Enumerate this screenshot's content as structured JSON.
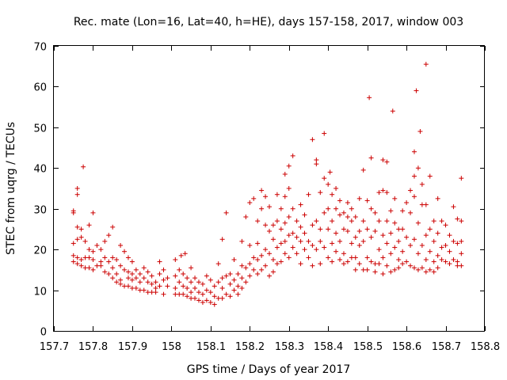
{
  "chart_data": {
    "type": "scatter",
    "title": "Rec. mate (Lon=16, Lat=40, h=HE), days 157-158, 2017, window 003",
    "xlabel": "GPS time / Days of year 2017",
    "ylabel": "STEC from uqrg / TECUs",
    "xlim": [
      157.7,
      158.8
    ],
    "ylim": [
      0,
      70
    ],
    "grid": false,
    "legend": "none",
    "marker": "plus",
    "point_color": "#cc0000",
    "x_ticks": [
      "157.7",
      "157.8",
      "157.9",
      "158",
      "158.1",
      "158.2",
      "158.3",
      "158.4",
      "158.5",
      "158.6",
      "158.7",
      "158.8"
    ],
    "x_tick_values": [
      157.7,
      157.8,
      157.9,
      158.0,
      158.1,
      158.2,
      158.3,
      158.4,
      158.5,
      158.6,
      158.7,
      158.8
    ],
    "y_ticks": [
      "0",
      "10",
      "20",
      "30",
      "40",
      "50",
      "60",
      "70"
    ],
    "y_tick_values": [
      0,
      10,
      20,
      30,
      40,
      50,
      60,
      70
    ],
    "points": [
      [
        157.75,
        29.5
      ],
      [
        157.75,
        29.0
      ],
      [
        157.75,
        21.5
      ],
      [
        157.75,
        18.5
      ],
      [
        157.75,
        17.0
      ],
      [
        157.76,
        35.0
      ],
      [
        157.76,
        33.5
      ],
      [
        157.76,
        25.5
      ],
      [
        157.76,
        22.5
      ],
      [
        157.76,
        18.0
      ],
      [
        157.76,
        16.5
      ],
      [
        157.77,
        25.0
      ],
      [
        157.77,
        23.0
      ],
      [
        157.77,
        17.5
      ],
      [
        157.77,
        16.0
      ],
      [
        157.775,
        40.3
      ],
      [
        157.78,
        22.0
      ],
      [
        157.78,
        18.0
      ],
      [
        157.78,
        15.5
      ],
      [
        157.79,
        26.0
      ],
      [
        157.79,
        20.0
      ],
      [
        157.79,
        18.0
      ],
      [
        157.79,
        15.5
      ],
      [
        157.8,
        29.0
      ],
      [
        157.8,
        19.5
      ],
      [
        157.8,
        17.5
      ],
      [
        157.8,
        15.0
      ],
      [
        157.81,
        21.0
      ],
      [
        157.81,
        16.0
      ],
      [
        157.82,
        20.0
      ],
      [
        157.82,
        17.0
      ],
      [
        157.82,
        16.0
      ],
      [
        157.83,
        22.0
      ],
      [
        157.83,
        18.0
      ],
      [
        157.83,
        14.5
      ],
      [
        157.84,
        23.5
      ],
      [
        157.84,
        17.0
      ],
      [
        157.84,
        14.0
      ],
      [
        157.85,
        25.5
      ],
      [
        157.85,
        18.0
      ],
      [
        157.85,
        15.5
      ],
      [
        157.85,
        13.0
      ],
      [
        157.86,
        17.5
      ],
      [
        157.86,
        14.0
      ],
      [
        157.86,
        12.0
      ],
      [
        157.87,
        21.0
      ],
      [
        157.87,
        16.0
      ],
      [
        157.87,
        12.5
      ],
      [
        157.87,
        11.5
      ],
      [
        157.88,
        19.5
      ],
      [
        157.88,
        15.0
      ],
      [
        157.88,
        11.0
      ],
      [
        157.89,
        18.0
      ],
      [
        157.89,
        14.5
      ],
      [
        157.89,
        13.0
      ],
      [
        157.89,
        11.0
      ],
      [
        157.9,
        17.0
      ],
      [
        157.9,
        14.0
      ],
      [
        157.9,
        12.5
      ],
      [
        157.9,
        10.5
      ],
      [
        157.91,
        15.0
      ],
      [
        157.91,
        13.0
      ],
      [
        157.91,
        10.5
      ],
      [
        157.92,
        14.0
      ],
      [
        157.92,
        12.0
      ],
      [
        157.92,
        10.0
      ],
      [
        157.93,
        15.5
      ],
      [
        157.93,
        13.0
      ],
      [
        157.93,
        10.0
      ],
      [
        157.94,
        14.5
      ],
      [
        157.94,
        12.0
      ],
      [
        157.94,
        9.5
      ],
      [
        157.95,
        13.5
      ],
      [
        157.95,
        11.5
      ],
      [
        157.95,
        9.5
      ],
      [
        157.96,
        12.0
      ],
      [
        157.96,
        10.5
      ],
      [
        157.96,
        9.5
      ],
      [
        157.97,
        17.0
      ],
      [
        157.97,
        14.0
      ],
      [
        157.97,
        11.0
      ],
      [
        157.98,
        15.0
      ],
      [
        157.98,
        12.5
      ],
      [
        157.98,
        9.0
      ],
      [
        157.99,
        13.0
      ],
      [
        157.99,
        11.0
      ],
      [
        158.01,
        17.5
      ],
      [
        158.01,
        13.5
      ],
      [
        158.01,
        10.5
      ],
      [
        158.01,
        9.0
      ],
      [
        158.02,
        15.0
      ],
      [
        158.02,
        12.0
      ],
      [
        158.02,
        9.0
      ],
      [
        158.025,
        18.5
      ],
      [
        158.03,
        14.0
      ],
      [
        158.03,
        11.0
      ],
      [
        158.03,
        9.0
      ],
      [
        158.035,
        19.0
      ],
      [
        158.04,
        13.0
      ],
      [
        158.04,
        10.5
      ],
      [
        158.04,
        8.5
      ],
      [
        158.05,
        15.5
      ],
      [
        158.05,
        12.0
      ],
      [
        158.05,
        9.5
      ],
      [
        158.05,
        8.0
      ],
      [
        158.06,
        13.0
      ],
      [
        158.06,
        10.5
      ],
      [
        158.06,
        8.0
      ],
      [
        158.07,
        12.0
      ],
      [
        158.07,
        9.5
      ],
      [
        158.07,
        7.5
      ],
      [
        158.08,
        11.5
      ],
      [
        158.08,
        9.0
      ],
      [
        158.08,
        7.0
      ],
      [
        158.09,
        13.5
      ],
      [
        158.09,
        10.0
      ],
      [
        158.09,
        7.5
      ],
      [
        158.1,
        12.5
      ],
      [
        158.1,
        9.5
      ],
      [
        158.1,
        7.0
      ],
      [
        158.11,
        11.0
      ],
      [
        158.11,
        8.5
      ],
      [
        158.11,
        6.5
      ],
      [
        158.12,
        16.5
      ],
      [
        158.12,
        12.0
      ],
      [
        158.12,
        8.0
      ],
      [
        158.13,
        22.5
      ],
      [
        158.13,
        13.0
      ],
      [
        158.13,
        10.5
      ],
      [
        158.13,
        8.0
      ],
      [
        158.14,
        29.0
      ],
      [
        158.14,
        13.5
      ],
      [
        158.14,
        9.0
      ],
      [
        158.15,
        14.0
      ],
      [
        158.15,
        11.5
      ],
      [
        158.15,
        8.5
      ],
      [
        158.16,
        17.5
      ],
      [
        158.16,
        12.5
      ],
      [
        158.16,
        10.0
      ],
      [
        158.17,
        14.0
      ],
      [
        158.17,
        11.0
      ],
      [
        158.17,
        9.0
      ],
      [
        158.18,
        22.0
      ],
      [
        158.18,
        16.0
      ],
      [
        158.18,
        13.0
      ],
      [
        158.18,
        10.5
      ],
      [
        158.19,
        28.0
      ],
      [
        158.19,
        15.5
      ],
      [
        158.19,
        12.0
      ],
      [
        158.2,
        31.5
      ],
      [
        158.2,
        21.0
      ],
      [
        158.2,
        16.5
      ],
      [
        158.2,
        13.5
      ],
      [
        158.21,
        32.5
      ],
      [
        158.21,
        18.0
      ],
      [
        158.21,
        15.0
      ],
      [
        158.22,
        27.0
      ],
      [
        158.22,
        21.5
      ],
      [
        158.22,
        17.5
      ],
      [
        158.22,
        14.0
      ],
      [
        158.23,
        34.5
      ],
      [
        158.23,
        30.0
      ],
      [
        158.23,
        18.5
      ],
      [
        158.23,
        15.0
      ],
      [
        158.24,
        33.0
      ],
      [
        158.24,
        26.0
      ],
      [
        158.24,
        20.0
      ],
      [
        158.24,
        16.0
      ],
      [
        158.25,
        30.5
      ],
      [
        158.25,
        24.5
      ],
      [
        158.25,
        19.0
      ],
      [
        158.25,
        13.5
      ],
      [
        158.26,
        26.0
      ],
      [
        158.26,
        22.5
      ],
      [
        158.26,
        17.5
      ],
      [
        158.26,
        14.5
      ],
      [
        158.27,
        33.5
      ],
      [
        158.27,
        27.0
      ],
      [
        158.27,
        20.5
      ],
      [
        158.27,
        16.5
      ],
      [
        158.28,
        30.0
      ],
      [
        158.28,
        25.0
      ],
      [
        158.28,
        21.5
      ],
      [
        158.28,
        17.0
      ],
      [
        158.29,
        38.5
      ],
      [
        158.29,
        33.0
      ],
      [
        158.29,
        26.5
      ],
      [
        158.29,
        22.0
      ],
      [
        158.29,
        19.0
      ],
      [
        158.3,
        40.5
      ],
      [
        158.3,
        35.0
      ],
      [
        158.3,
        28.0
      ],
      [
        158.3,
        23.5
      ],
      [
        158.3,
        18.0
      ],
      [
        158.31,
        43.0
      ],
      [
        158.31,
        30.0
      ],
      [
        158.31,
        24.0
      ],
      [
        158.31,
        20.5
      ],
      [
        158.32,
        27.0
      ],
      [
        158.32,
        23.0
      ],
      [
        158.32,
        19.0
      ],
      [
        158.33,
        31.0
      ],
      [
        158.33,
        25.5
      ],
      [
        158.33,
        22.0
      ],
      [
        158.33,
        16.5
      ],
      [
        158.34,
        28.5
      ],
      [
        158.34,
        24.0
      ],
      [
        158.34,
        20.0
      ],
      [
        158.35,
        33.5
      ],
      [
        158.35,
        22.0
      ],
      [
        158.35,
        18.0
      ],
      [
        158.36,
        47.0
      ],
      [
        158.36,
        26.0
      ],
      [
        158.36,
        21.0
      ],
      [
        158.36,
        16.0
      ],
      [
        158.37,
        42.0
      ],
      [
        158.37,
        41.0
      ],
      [
        158.37,
        27.0
      ],
      [
        158.37,
        20.0
      ],
      [
        158.38,
        34.0
      ],
      [
        158.38,
        25.0
      ],
      [
        158.38,
        22.0
      ],
      [
        158.38,
        16.5
      ],
      [
        158.39,
        48.5
      ],
      [
        158.39,
        37.5
      ],
      [
        158.39,
        29.0
      ],
      [
        158.39,
        20.5
      ],
      [
        158.4,
        36.0
      ],
      [
        158.4,
        30.0
      ],
      [
        158.4,
        25.0
      ],
      [
        158.4,
        18.0
      ],
      [
        158.405,
        39.0
      ],
      [
        158.41,
        33.5
      ],
      [
        158.41,
        27.0
      ],
      [
        158.41,
        21.5
      ],
      [
        158.41,
        17.0
      ],
      [
        158.42,
        35.0
      ],
      [
        158.42,
        30.0
      ],
      [
        158.42,
        24.0
      ],
      [
        158.42,
        19.5
      ],
      [
        158.43,
        32.0
      ],
      [
        158.43,
        28.5
      ],
      [
        158.43,
        22.0
      ],
      [
        158.43,
        17.5
      ],
      [
        158.44,
        29.0
      ],
      [
        158.44,
        25.0
      ],
      [
        158.44,
        19.0
      ],
      [
        158.44,
        16.5
      ],
      [
        158.45,
        31.5
      ],
      [
        158.45,
        28.0
      ],
      [
        158.45,
        24.5
      ],
      [
        158.45,
        17.0
      ],
      [
        158.46,
        30.0
      ],
      [
        158.46,
        27.0
      ],
      [
        158.46,
        21.5
      ],
      [
        158.46,
        18.0
      ],
      [
        158.47,
        28.0
      ],
      [
        158.47,
        23.0
      ],
      [
        158.47,
        18.0
      ],
      [
        158.47,
        15.0
      ],
      [
        158.48,
        32.5
      ],
      [
        158.48,
        24.5
      ],
      [
        158.48,
        21.0
      ],
      [
        158.48,
        16.5
      ],
      [
        158.49,
        39.5
      ],
      [
        158.49,
        27.0
      ],
      [
        158.49,
        22.0
      ],
      [
        158.49,
        15.0
      ],
      [
        158.5,
        32.0
      ],
      [
        158.5,
        25.0
      ],
      [
        158.5,
        18.0
      ],
      [
        158.5,
        15.0
      ],
      [
        158.505,
        57.3
      ],
      [
        158.51,
        42.5
      ],
      [
        158.51,
        30.0
      ],
      [
        158.51,
        23.0
      ],
      [
        158.51,
        17.0
      ],
      [
        158.52,
        29.0
      ],
      [
        158.52,
        24.5
      ],
      [
        158.52,
        16.5
      ],
      [
        158.52,
        14.5
      ],
      [
        158.53,
        34.0
      ],
      [
        158.53,
        27.0
      ],
      [
        158.53,
        20.0
      ],
      [
        158.53,
        16.5
      ],
      [
        158.54,
        42.0
      ],
      [
        158.54,
        34.5
      ],
      [
        158.54,
        23.5
      ],
      [
        158.54,
        18.0
      ],
      [
        158.54,
        14.0
      ],
      [
        158.55,
        41.5
      ],
      [
        158.55,
        34.0
      ],
      [
        158.55,
        27.0
      ],
      [
        158.55,
        21.5
      ],
      [
        158.55,
        16.0
      ],
      [
        158.56,
        29.5
      ],
      [
        158.56,
        24.0
      ],
      [
        158.56,
        19.0
      ],
      [
        158.56,
        14.5
      ],
      [
        158.565,
        54.0
      ],
      [
        158.57,
        32.5
      ],
      [
        158.57,
        26.5
      ],
      [
        158.57,
        20.5
      ],
      [
        158.57,
        15.0
      ],
      [
        158.58,
        25.0
      ],
      [
        158.58,
        22.0
      ],
      [
        158.58,
        17.5
      ],
      [
        158.58,
        15.5
      ],
      [
        158.59,
        29.5
      ],
      [
        158.59,
        25.0
      ],
      [
        158.59,
        19.5
      ],
      [
        158.59,
        16.5
      ],
      [
        158.6,
        31.5
      ],
      [
        158.6,
        23.0
      ],
      [
        158.6,
        17.0
      ],
      [
        158.61,
        34.5
      ],
      [
        158.61,
        29.0
      ],
      [
        158.61,
        21.0
      ],
      [
        158.61,
        16.0
      ],
      [
        158.62,
        44.0
      ],
      [
        158.62,
        38.0
      ],
      [
        158.62,
        33.0
      ],
      [
        158.62,
        22.5
      ],
      [
        158.62,
        15.5
      ],
      [
        158.625,
        59.0
      ],
      [
        158.63,
        40.0
      ],
      [
        158.63,
        26.5
      ],
      [
        158.63,
        19.0
      ],
      [
        158.63,
        15.0
      ],
      [
        158.635,
        49.0
      ],
      [
        158.64,
        36.0
      ],
      [
        158.64,
        31.0
      ],
      [
        158.64,
        21.0
      ],
      [
        158.64,
        15.5
      ],
      [
        158.65,
        65.5
      ],
      [
        158.65,
        31.0
      ],
      [
        158.65,
        23.5
      ],
      [
        158.65,
        17.5
      ],
      [
        158.65,
        14.5
      ],
      [
        158.66,
        38.0
      ],
      [
        158.66,
        25.0
      ],
      [
        158.66,
        19.5
      ],
      [
        158.66,
        15.0
      ],
      [
        158.67,
        27.0
      ],
      [
        158.67,
        22.0
      ],
      [
        158.67,
        17.0
      ],
      [
        158.67,
        14.5
      ],
      [
        158.68,
        32.5
      ],
      [
        158.68,
        24.0
      ],
      [
        158.68,
        18.5
      ],
      [
        158.68,
        15.5
      ],
      [
        158.69,
        27.0
      ],
      [
        158.69,
        20.5
      ],
      [
        158.69,
        17.5
      ],
      [
        158.7,
        26.0
      ],
      [
        158.7,
        21.0
      ],
      [
        158.7,
        17.0
      ],
      [
        158.71,
        23.5
      ],
      [
        158.71,
        19.5
      ],
      [
        158.71,
        16.5
      ],
      [
        158.72,
        30.5
      ],
      [
        158.72,
        22.0
      ],
      [
        158.72,
        17.5
      ],
      [
        158.73,
        27.5
      ],
      [
        158.73,
        21.5
      ],
      [
        158.73,
        17.0
      ],
      [
        158.73,
        16.0
      ],
      [
        158.74,
        37.5
      ],
      [
        158.74,
        27.0
      ],
      [
        158.74,
        22.0
      ],
      [
        158.74,
        19.0
      ],
      [
        158.74,
        16.0
      ]
    ]
  }
}
